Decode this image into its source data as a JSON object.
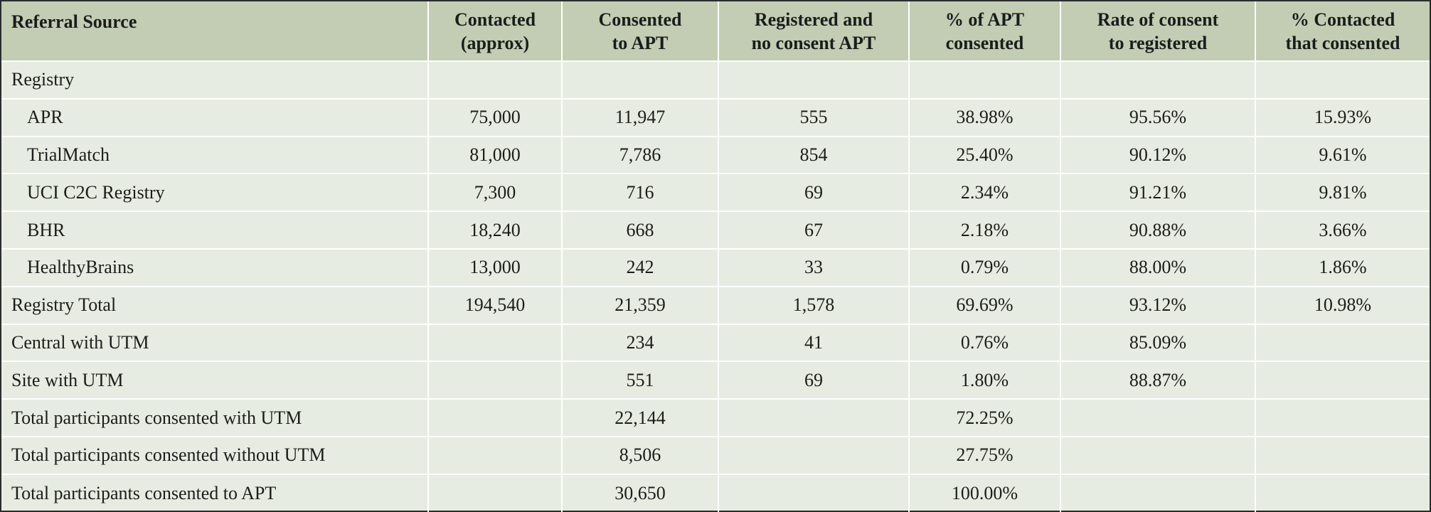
{
  "columns": [
    "Referral Source",
    "Contacted (approx)",
    "Consented to APT",
    "Registered and no consent APT",
    "% of APT consented",
    "Rate of consent to registered",
    "% Contacted that consented"
  ],
  "header": {
    "c0": "Referral Source",
    "c1a": "Contacted",
    "c1b": "(approx)",
    "c2a": "Consented",
    "c2b": "to APT",
    "c3a": "Registered and",
    "c3b": "no consent APT",
    "c4a": "% of APT",
    "c4b": "consented",
    "c5a": "Rate of consent",
    "c5b": "to registered",
    "c6a": "% Contacted",
    "c6b": "that consented"
  },
  "rows": [
    {
      "source": "Registry",
      "indent": false,
      "contacted": "",
      "consented": "",
      "registered": "",
      "pct_apt": "",
      "rate": "",
      "pct_contacted": ""
    },
    {
      "source": "APR",
      "indent": true,
      "contacted": "75,000",
      "consented": "11,947",
      "registered": "555",
      "pct_apt": "38.98%",
      "rate": "95.56%",
      "pct_contacted": "15.93%"
    },
    {
      "source": "TrialMatch",
      "indent": true,
      "contacted": "81,000",
      "consented": "7,786",
      "registered": "854",
      "pct_apt": "25.40%",
      "rate": "90.12%",
      "pct_contacted": "9.61%"
    },
    {
      "source": "UCI C2C Registry",
      "indent": true,
      "contacted": "7,300",
      "consented": "716",
      "registered": "69",
      "pct_apt": "2.34%",
      "rate": "91.21%",
      "pct_contacted": "9.81%"
    },
    {
      "source": "BHR",
      "indent": true,
      "contacted": "18,240",
      "consented": "668",
      "registered": "67",
      "pct_apt": "2.18%",
      "rate": "90.88%",
      "pct_contacted": "3.66%"
    },
    {
      "source": "HealthyBrains",
      "indent": true,
      "contacted": "13,000",
      "consented": "242",
      "registered": "33",
      "pct_apt": "0.79%",
      "rate": "88.00%",
      "pct_contacted": "1.86%"
    },
    {
      "source": "Registry Total",
      "indent": false,
      "contacted": "194,540",
      "consented": "21,359",
      "registered": "1,578",
      "pct_apt": "69.69%",
      "rate": "93.12%",
      "pct_contacted": "10.98%"
    },
    {
      "source": "Central with UTM",
      "indent": false,
      "contacted": "",
      "consented": "234",
      "registered": "41",
      "pct_apt": "0.76%",
      "rate": "85.09%",
      "pct_contacted": ""
    },
    {
      "source": "Site with UTM",
      "indent": false,
      "contacted": "",
      "consented": "551",
      "registered": "69",
      "pct_apt": "1.80%",
      "rate": "88.87%",
      "pct_contacted": ""
    },
    {
      "source": "Total participants consented with UTM",
      "indent": false,
      "contacted": "",
      "consented": "22,144",
      "registered": "",
      "pct_apt": "72.25%",
      "rate": "",
      "pct_contacted": ""
    },
    {
      "source": "Total participants consented without UTM",
      "indent": false,
      "contacted": "",
      "consented": "8,506",
      "registered": "",
      "pct_apt": "27.75%",
      "rate": "",
      "pct_contacted": ""
    },
    {
      "source": "Total participants consented to APT",
      "indent": false,
      "contacted": "",
      "consented": "30,650",
      "registered": "",
      "pct_apt": "100.00%",
      "rate": "",
      "pct_contacted": ""
    }
  ],
  "colors": {
    "header_bg": "#c2cdb4",
    "body_bg": "#e6ece1",
    "grid_line": "#ffffff",
    "outer_border": "#2b2b2b"
  }
}
